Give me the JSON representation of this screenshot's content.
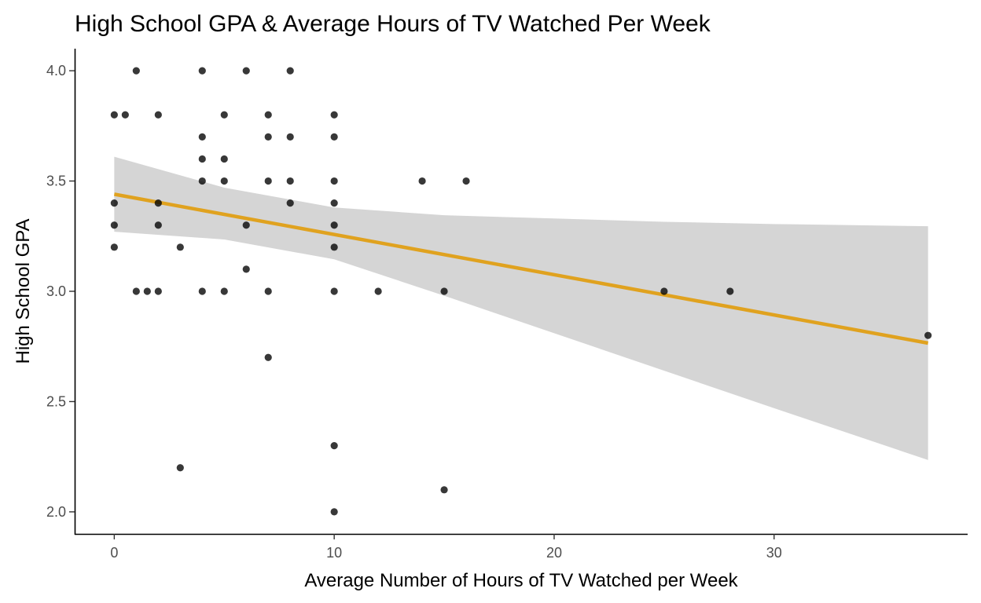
{
  "chart_data": {
    "type": "scatter",
    "title": "High School GPA & Average Hours of TV Watched Per Week",
    "xlabel": "Average Number of Hours of TV Watched per Week",
    "ylabel": "High School GPA",
    "xlim": [
      -1.8,
      38.8
    ],
    "ylim": [
      1.9,
      4.1
    ],
    "x_ticks": [
      0,
      10,
      20,
      30
    ],
    "y_ticks": [
      2.0,
      2.5,
      3.0,
      3.5,
      4.0
    ],
    "x_tick_labels": [
      "0",
      "10",
      "20",
      "30"
    ],
    "y_tick_labels": [
      "2.0",
      "2.5",
      "3.0",
      "3.5",
      "4.0"
    ],
    "grid": false,
    "legend": "none",
    "point_color": "#000000",
    "fit_line_color": "#E0A21F",
    "ribbon_color": "#D5D5D5",
    "points": [
      {
        "x": 0,
        "y": 3.8
      },
      {
        "x": 0,
        "y": 3.4
      },
      {
        "x": 0,
        "y": 3.3
      },
      {
        "x": 0,
        "y": 3.2
      },
      {
        "x": 0.5,
        "y": 3.8
      },
      {
        "x": 1,
        "y": 4.0
      },
      {
        "x": 1,
        "y": 3.0
      },
      {
        "x": 1.5,
        "y": 3.0
      },
      {
        "x": 2,
        "y": 3.8
      },
      {
        "x": 2,
        "y": 3.4
      },
      {
        "x": 2,
        "y": 3.3
      },
      {
        "x": 2,
        "y": 3.0
      },
      {
        "x": 3,
        "y": 3.2
      },
      {
        "x": 3,
        "y": 2.2
      },
      {
        "x": 4,
        "y": 4.0
      },
      {
        "x": 4,
        "y": 3.7
      },
      {
        "x": 4,
        "y": 3.6
      },
      {
        "x": 4,
        "y": 3.5
      },
      {
        "x": 4,
        "y": 3.0
      },
      {
        "x": 5,
        "y": 3.8
      },
      {
        "x": 5,
        "y": 3.6
      },
      {
        "x": 5,
        "y": 3.5
      },
      {
        "x": 5,
        "y": 3.0
      },
      {
        "x": 6,
        "y": 4.0
      },
      {
        "x": 6,
        "y": 3.3
      },
      {
        "x": 6,
        "y": 3.1
      },
      {
        "x": 7,
        "y": 3.8
      },
      {
        "x": 7,
        "y": 3.7
      },
      {
        "x": 7,
        "y": 3.5
      },
      {
        "x": 7,
        "y": 3.0
      },
      {
        "x": 7,
        "y": 2.7
      },
      {
        "x": 8,
        "y": 4.0
      },
      {
        "x": 8,
        "y": 3.7
      },
      {
        "x": 8,
        "y": 3.5
      },
      {
        "x": 8,
        "y": 3.4
      },
      {
        "x": 10,
        "y": 3.8
      },
      {
        "x": 10,
        "y": 3.7
      },
      {
        "x": 10,
        "y": 3.5
      },
      {
        "x": 10,
        "y": 3.4
      },
      {
        "x": 10,
        "y": 3.3
      },
      {
        "x": 10,
        "y": 3.2
      },
      {
        "x": 10,
        "y": 3.0
      },
      {
        "x": 10,
        "y": 2.3
      },
      {
        "x": 10,
        "y": 2.0
      },
      {
        "x": 12,
        "y": 3.0
      },
      {
        "x": 14,
        "y": 3.5
      },
      {
        "x": 15,
        "y": 3.0
      },
      {
        "x": 15,
        "y": 2.1
      },
      {
        "x": 16,
        "y": 3.5
      },
      {
        "x": 25,
        "y": 3.0
      },
      {
        "x": 28,
        "y": 3.0
      },
      {
        "x": 37,
        "y": 2.8
      }
    ],
    "fit_line": [
      {
        "x": 0,
        "y": 3.44
      },
      {
        "x": 37,
        "y": 2.765
      }
    ],
    "confidence_band": [
      {
        "x": 0,
        "lower": 3.27,
        "upper": 3.61
      },
      {
        "x": 5,
        "lower": 3.235,
        "upper": 3.47
      },
      {
        "x": 10,
        "lower": 3.145,
        "upper": 3.38
      },
      {
        "x": 15,
        "lower": 2.98,
        "upper": 3.345
      },
      {
        "x": 20,
        "lower": 2.81,
        "upper": 3.33
      },
      {
        "x": 25,
        "lower": 2.64,
        "upper": 3.315
      },
      {
        "x": 30,
        "lower": 2.47,
        "upper": 3.305
      },
      {
        "x": 37,
        "lower": 2.235,
        "upper": 3.295
      }
    ]
  }
}
